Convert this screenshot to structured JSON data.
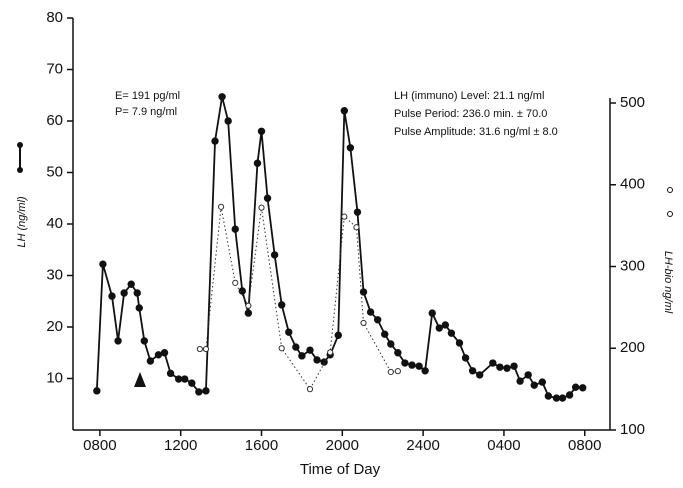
{
  "chart_data": {
    "type": "line",
    "title_annotations": [
      "E= 191 pg/ml",
      "P= 7.9 ng/ml"
    ],
    "stats_annotations": [
      "LH (immuno) Level: 21.1 ng/ml",
      "Pulse Period: 236.0 min. ± 70.0",
      "Pulse Amplitude: 31.6 ng/ml ± 8.0"
    ],
    "xlabel": "Time of Day",
    "ylabel": "LH (ng/ml)",
    "y2label": "LH-bio ng/ml",
    "xlim": [
      6.67,
      33.25
    ],
    "xticks": [
      {
        "value": 8,
        "label": "0800"
      },
      {
        "value": 12,
        "label": "1200"
      },
      {
        "value": 16,
        "label": "1600"
      },
      {
        "value": 20,
        "label": "2000"
      },
      {
        "value": 24,
        "label": "2400"
      },
      {
        "value": 28,
        "label": "0400"
      },
      {
        "value": 32,
        "label": "0800"
      }
    ],
    "ylim": [
      0,
      80
    ],
    "yticks": [
      10,
      20,
      30,
      40,
      50,
      60,
      70,
      80
    ],
    "y2lim": [
      100,
      604
    ],
    "y2ticks": [
      100,
      200,
      300,
      400,
      500
    ],
    "series": [
      {
        "color": "#111111",
        "marker": "filled",
        "line": "solid",
        "x": [
          7.85,
          8.15,
          8.6,
          8.9,
          9.2,
          9.55,
          9.85,
          9.95,
          10.2,
          10.5,
          10.9,
          11.2,
          11.5,
          11.9,
          12.2,
          12.55,
          12.9,
          13.25,
          13.7,
          14.05,
          14.35,
          14.7,
          15.05,
          15.35,
          15.8,
          16.0,
          16.3,
          16.65,
          17.0,
          17.35,
          17.7,
          18.0,
          18.4,
          18.75,
          19.1,
          19.4,
          19.8,
          20.1,
          20.4,
          20.75,
          21.05,
          21.4,
          21.75,
          22.1,
          22.4,
          22.75,
          23.1,
          23.45,
          23.8,
          24.1,
          24.45,
          24.8,
          25.1,
          25.4,
          25.8,
          26.1,
          26.45,
          26.8,
          27.45,
          27.8,
          28.15,
          28.5,
          28.8,
          29.2,
          29.5,
          29.9,
          30.2,
          30.6,
          30.9,
          31.25,
          31.55,
          31.9
        ],
        "values": [
          7.6,
          32.2,
          26,
          17.3,
          26.6,
          28.3,
          26.6,
          23.7,
          17.3,
          13.4,
          14.6,
          15,
          11,
          9.9,
          9.9,
          9.1,
          7.4,
          7.6,
          56.1,
          64.7,
          60,
          39,
          27,
          22.7,
          51.8,
          58,
          45,
          34,
          24.3,
          19,
          16.1,
          14.4,
          15.5,
          13.6,
          13.2,
          14.6,
          18.4,
          62,
          54.8,
          42.3,
          26.8,
          22.9,
          21.4,
          18.6,
          16.7,
          15,
          13,
          12.6,
          12.4,
          11.5,
          22.7,
          19.8,
          20.4,
          18.8,
          16.9,
          14,
          11.5,
          10.7,
          13,
          12.2,
          12,
          12.4,
          9.5,
          10.7,
          8.7,
          9.3,
          6.6,
          6.2,
          6.2,
          6.8,
          8.3,
          8.2
        ]
      },
      {
        "color": "#333333",
        "marker": "open",
        "line": "dotted",
        "axis": "y2",
        "x": [
          12.95,
          13.25,
          14.0,
          14.7,
          15.35,
          16.0,
          17.0,
          18.4,
          19.4,
          20.1,
          20.7,
          21.05,
          22.4,
          22.75
        ],
        "values": [
          199,
          199,
          373,
          280,
          252,
          372,
          200,
          150,
          195,
          361,
          348,
          231,
          171,
          172
        ]
      }
    ]
  }
}
